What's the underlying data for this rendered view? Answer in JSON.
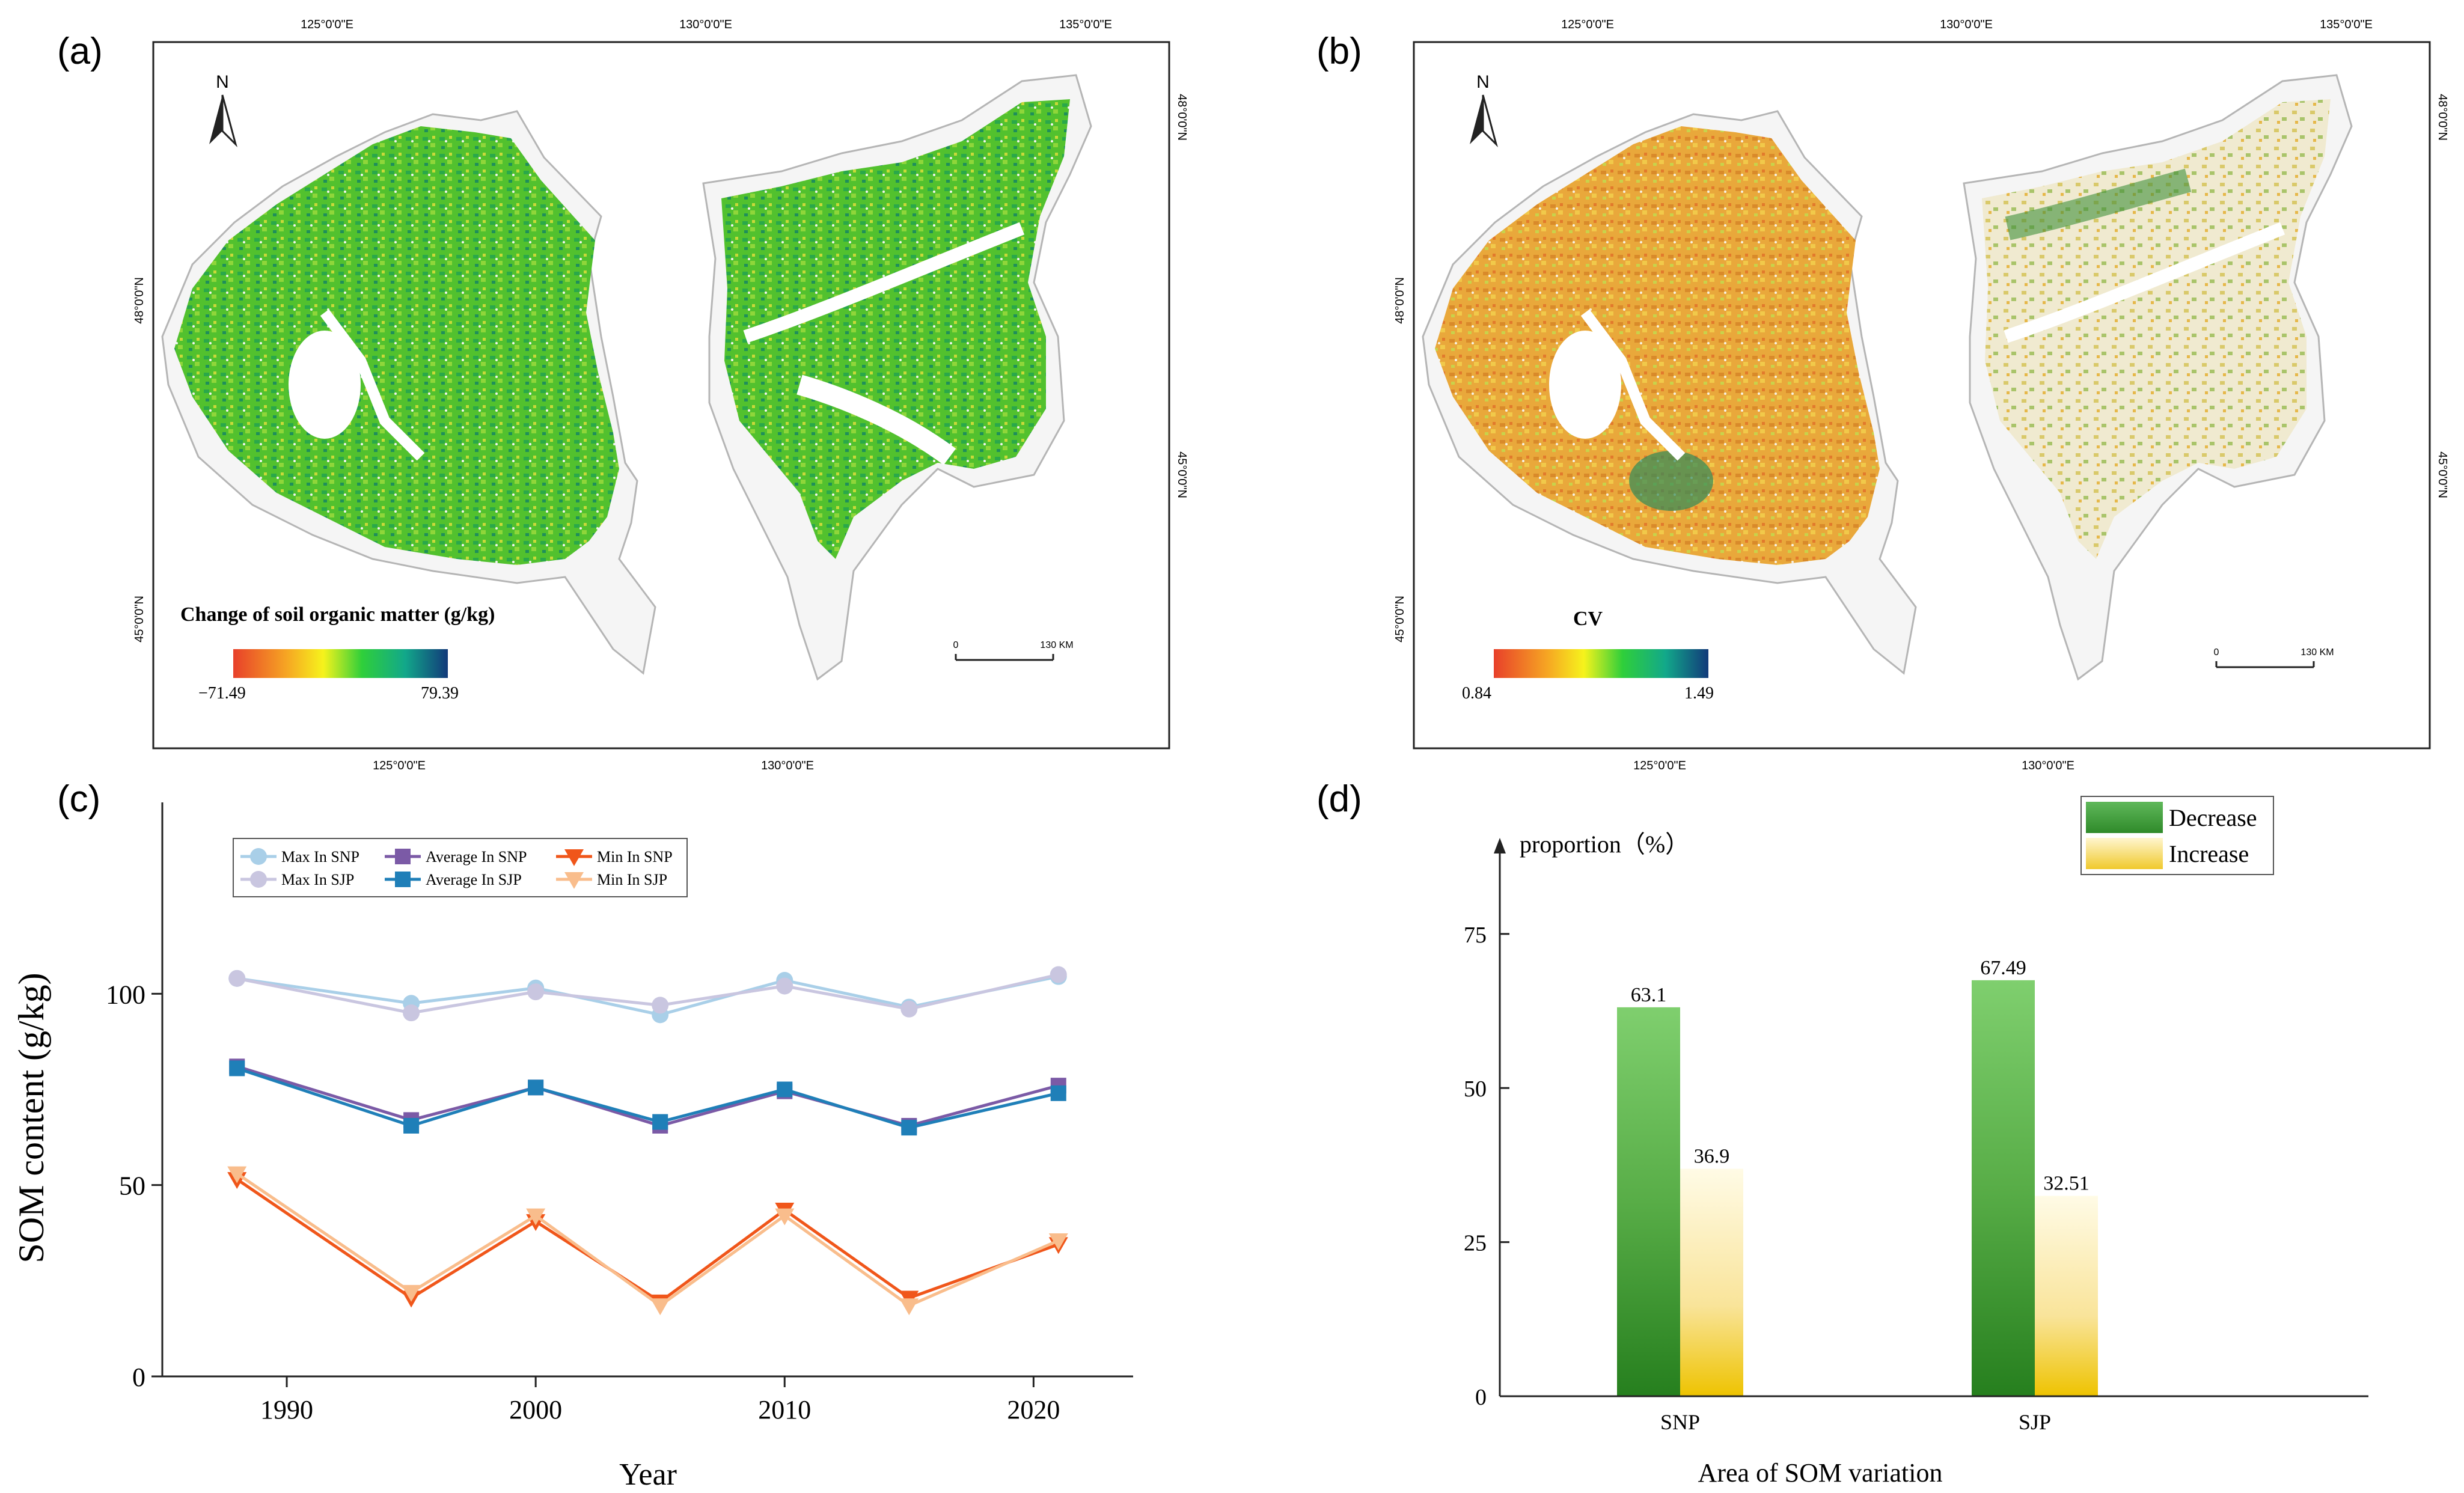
{
  "panels": {
    "a": {
      "label": "(a)",
      "north": "N",
      "top_ticks": [
        "125°0'0\"E",
        "130°0'0\"E",
        "135°0'0\"E"
      ],
      "bottom_ticks": [
        "125°0'0\"E",
        "130°0'0\"E"
      ],
      "left_ticks": [
        "48°0'0\"N",
        "45°0'0\"N"
      ],
      "right_ticks": [
        "48°0'0\"N",
        "45°0'0\"N"
      ],
      "legend_title": "Change of soil organic matter (g/kg)",
      "legend_min": "−71.49",
      "legend_max": "79.39",
      "scale_start": "0",
      "scale_end": "130 KM"
    },
    "b": {
      "label": "(b)",
      "north": "N",
      "top_ticks": [
        "125°0'0\"E",
        "130°0'0\"E",
        "135°0'0\"E"
      ],
      "bottom_ticks": [
        "125°0'0\"E",
        "130°0'0\"E"
      ],
      "left_ticks": [
        "48°0'0\"N",
        "45°0'0\"N"
      ],
      "right_ticks": [
        "48°0'0\"N",
        "45°0'0\"N"
      ],
      "legend_title": "CV",
      "legend_min": "0.84",
      "legend_max": "1.49",
      "scale_start": "0",
      "scale_end": "130 KM"
    },
    "c": {
      "label": "(c)"
    },
    "d": {
      "label": "(d)"
    }
  },
  "colors": {
    "max_snp": "#a9cfe8",
    "max_sjp": "#c9c6e0",
    "avg_snp": "#7b5aa6",
    "avg_sjp": "#1f7fb8",
    "min_snp": "#f0561a",
    "min_sjp": "#f9bd8c",
    "decrease": "#3f9a3a",
    "increase": "#f4cf2a",
    "map_green": "#4fbf2f",
    "map_orange": "#e8a63a"
  },
  "chart_data": [
    {
      "type": "line",
      "panel": "c",
      "xlabel": "Year",
      "ylabel": "SOM content (g/kg)",
      "xlim": [
        1985,
        2024
      ],
      "ylim": [
        0,
        150
      ],
      "xticks": [
        1990,
        2000,
        2010,
        2020
      ],
      "yticks": [
        0,
        50,
        100
      ],
      "x": [
        1988,
        1995,
        2000,
        2005,
        2010,
        2015,
        2021
      ],
      "series": [
        {
          "name": "Max In SNP",
          "marker": "circle",
          "values": [
            104,
            97.5,
            101.5,
            94.5,
            103.5,
            96.5,
            104.5
          ]
        },
        {
          "name": "Max In SJP",
          "marker": "circle",
          "values": [
            104,
            95,
            100.5,
            97,
            102,
            96,
            105
          ]
        },
        {
          "name": "Average In SNP",
          "marker": "square",
          "values": [
            81,
            67,
            75.5,
            65.5,
            74.5,
            65.5,
            76
          ]
        },
        {
          "name": "Average In SJP",
          "marker": "square",
          "values": [
            80.5,
            65.5,
            75.5,
            66.5,
            75,
            65,
            74
          ]
        },
        {
          "name": "Min In SNP",
          "marker": "triangle-down",
          "values": [
            51.5,
            20.5,
            40.5,
            19.5,
            43.5,
            20.5,
            34.5
          ]
        },
        {
          "name": "Min In SJP",
          "marker": "triangle-down",
          "values": [
            53,
            22,
            42,
            18.5,
            42,
            18.5,
            35.5
          ]
        }
      ],
      "legend_position": "top-left"
    },
    {
      "type": "bar",
      "panel": "d",
      "title": "proportion（%）",
      "xlabel": "Area of SOM variation",
      "ylabel": "",
      "ylim": [
        0,
        90
      ],
      "yticks": [
        0,
        25,
        50,
        75
      ],
      "categories": [
        "SNP",
        "SJP"
      ],
      "series": [
        {
          "name": "Decrease",
          "values": [
            63.1,
            67.49
          ],
          "labels": [
            "63.1",
            "67.49"
          ]
        },
        {
          "name": "Increase",
          "values": [
            36.9,
            32.51
          ],
          "labels": [
            "36.9",
            "32.51"
          ]
        }
      ],
      "legend_position": "top-right"
    }
  ]
}
